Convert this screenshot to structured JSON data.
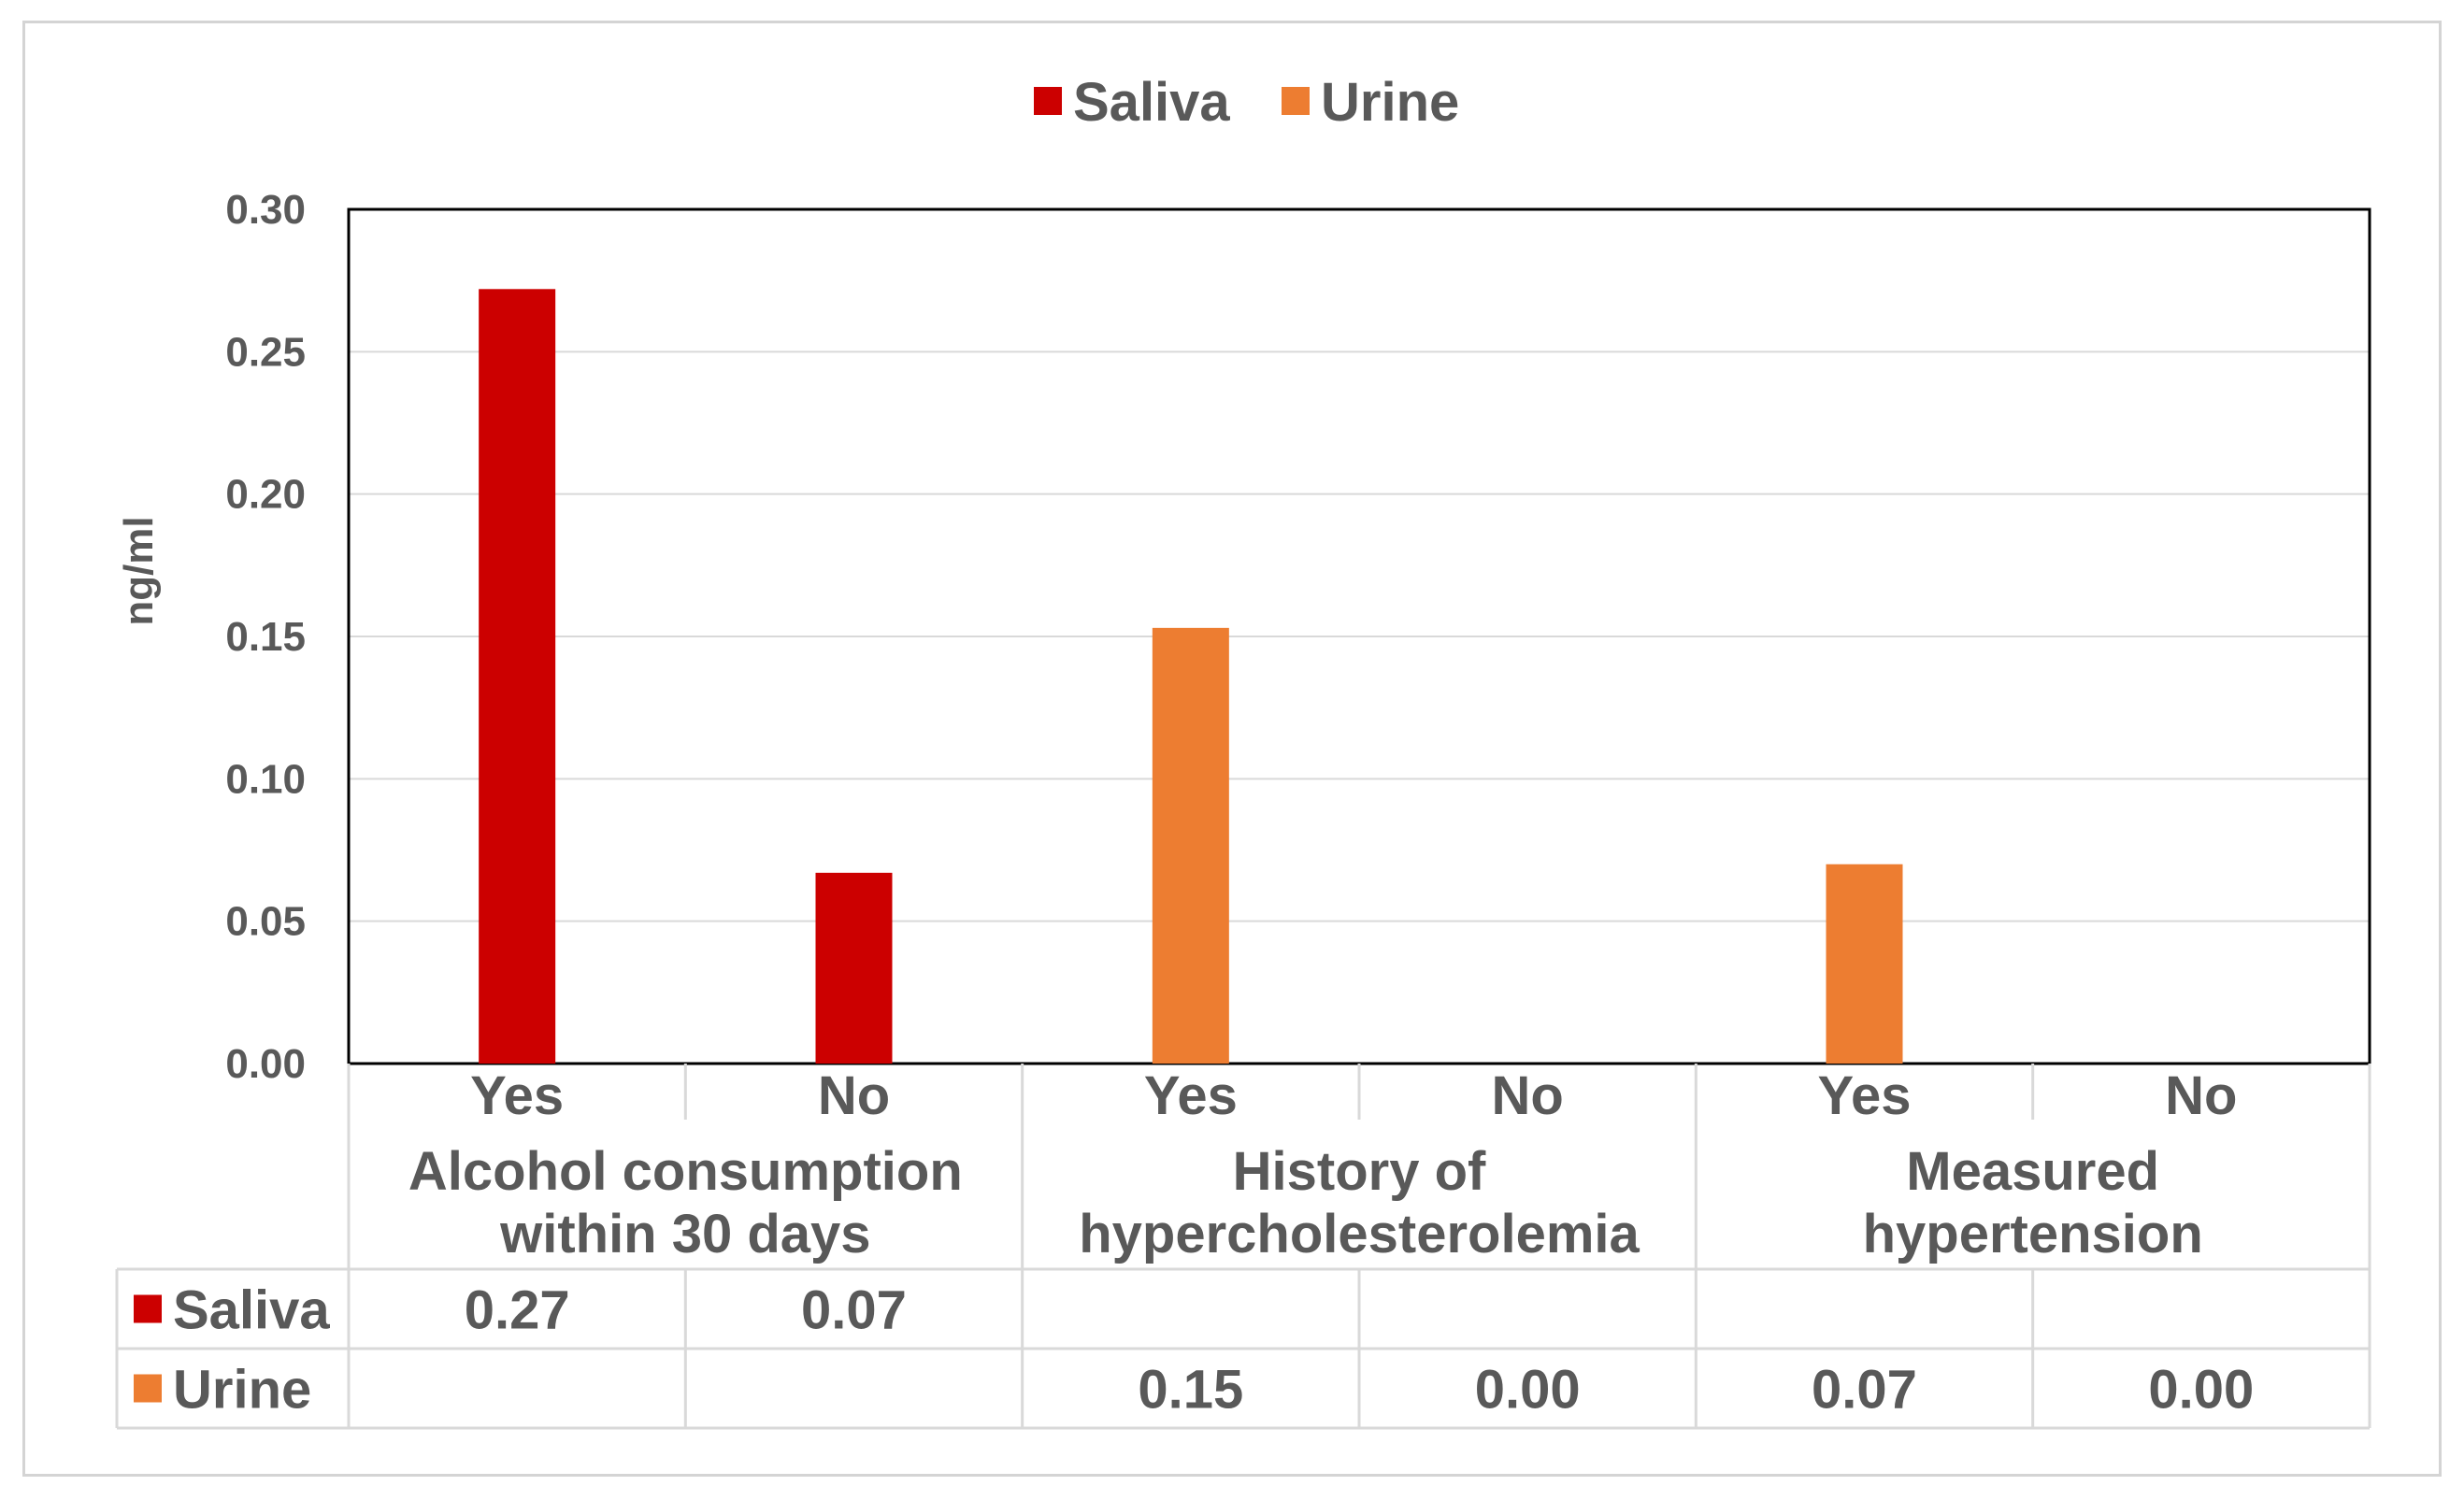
{
  "chart_data": {
    "type": "bar",
    "ylabel": "ng/ml",
    "ylim": [
      0,
      0.3
    ],
    "yticks": [
      "0.00",
      "0.05",
      "0.10",
      "0.15",
      "0.20",
      "0.25",
      "0.30"
    ],
    "gridlines": true,
    "legend_position": "top-center",
    "groups": [
      {
        "label": [
          "Alcohol consumption",
          "within 30 days"
        ],
        "categories": [
          "Yes",
          "No"
        ]
      },
      {
        "label": [
          "History of",
          "hypercholesterolemia"
        ],
        "categories": [
          "Yes",
          "No"
        ]
      },
      {
        "label": [
          "Measured",
          "hypertension"
        ],
        "categories": [
          "Yes",
          "No"
        ]
      }
    ],
    "series": [
      {
        "name": "Saliva",
        "color": "#cc0000",
        "values": [
          0.272,
          0.067,
          null,
          null,
          null,
          null
        ],
        "table_values": [
          "0.27",
          "0.07",
          "",
          "",
          "",
          ""
        ]
      },
      {
        "name": "Urine",
        "color": "#ed7d31",
        "values": [
          null,
          null,
          0.153,
          0.0,
          0.07,
          0.0
        ],
        "table_values": [
          "",
          "",
          "0.15",
          "0.00",
          "0.07",
          "0.00"
        ]
      }
    ]
  }
}
